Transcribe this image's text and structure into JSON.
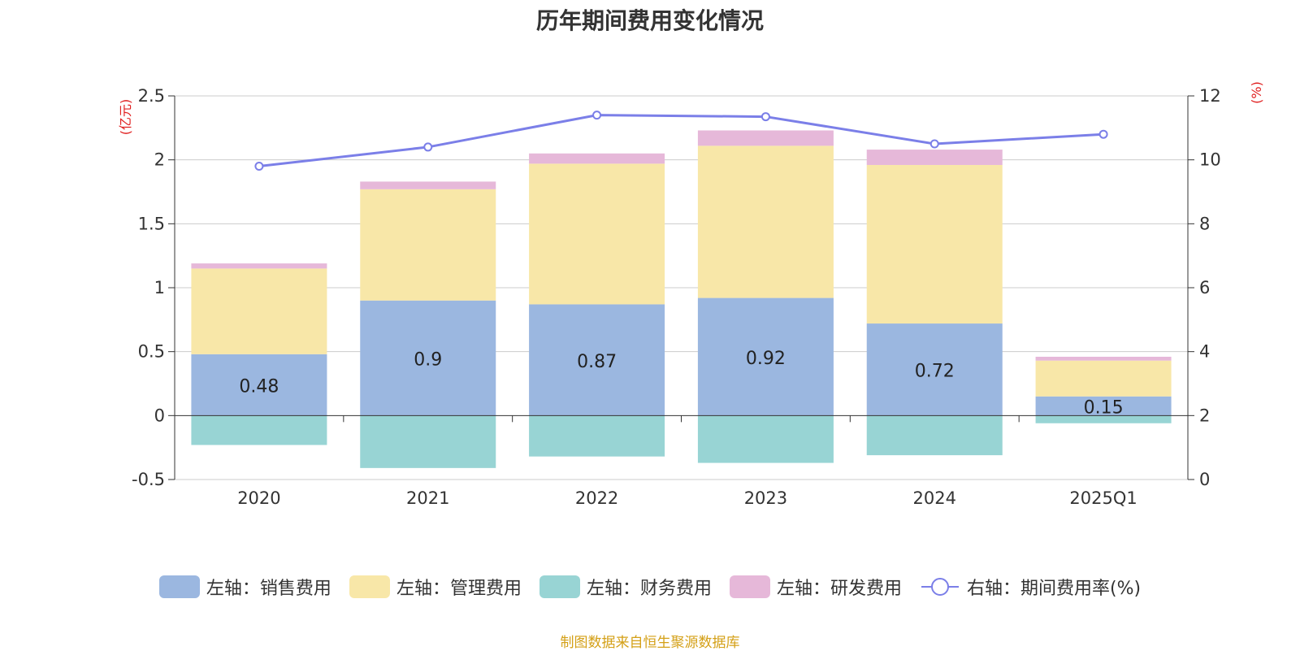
{
  "source": "制图数据来自恒生聚源数据库",
  "chart_data": {
    "type": "bar",
    "title": "历年期间费用变化情况",
    "categories": [
      "2020",
      "2021",
      "2022",
      "2023",
      "2024",
      "2025Q1"
    ],
    "ylabel_left": "(亿元)",
    "ylabel_right": "(%)",
    "ylim_left": [
      -0.5,
      2.5
    ],
    "yticks_left": [
      "2.5",
      "2",
      "1.5",
      "1",
      "0.5",
      "0",
      "-0.5"
    ],
    "ylim_right": [
      0,
      12
    ],
    "yticks_right": [
      "12",
      "10",
      "8",
      "6",
      "4",
      "2",
      "0"
    ],
    "grid": true,
    "legend_position": "bottom",
    "series": [
      {
        "name": "左轴：销售费用",
        "axis": "left",
        "kind": "bar",
        "color": "#9bb7e0",
        "values": [
          0.48,
          0.9,
          0.87,
          0.92,
          0.72,
          0.15
        ],
        "labels": [
          "0.48",
          "0.9",
          "0.87",
          "0.92",
          "0.72",
          "0.15"
        ]
      },
      {
        "name": "左轴：管理费用",
        "axis": "left",
        "kind": "bar",
        "color": "#f8e7a8",
        "values": [
          0.67,
          0.87,
          1.1,
          1.19,
          1.24,
          0.28
        ]
      },
      {
        "name": "左轴：财务费用",
        "axis": "left",
        "kind": "bar",
        "color": "#98d4d4",
        "values": [
          -0.23,
          -0.41,
          -0.32,
          -0.37,
          -0.31,
          -0.06
        ]
      },
      {
        "name": "左轴：研发费用",
        "axis": "left",
        "kind": "bar",
        "color": "#e6b8d9",
        "values": [
          0.04,
          0.06,
          0.08,
          0.12,
          0.12,
          0.03
        ]
      },
      {
        "name": "右轴：期间费用率(%)",
        "axis": "right",
        "kind": "line",
        "color": "#7b7fe8",
        "values": [
          9.8,
          10.4,
          11.4,
          11.35,
          10.5,
          10.8
        ]
      }
    ]
  }
}
